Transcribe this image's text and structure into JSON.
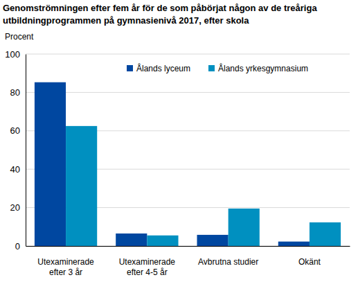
{
  "chart_data": {
    "type": "bar",
    "title": "Genomströmningen efter fem år för de som påbörjat någon av de treåriga\nutbildningprogrammen på gymnasienivå 2017, efter skola",
    "y_label": "Procent",
    "categories": [
      "Utexaminerade\nefter 3 år",
      "Utexaminerade\nefter 4-5 år",
      "Avbrutna studier",
      "Okänt"
    ],
    "series": [
      {
        "name": "Ålands lyceum",
        "color": "#0047a0",
        "values": [
          85.3,
          6.5,
          5.8,
          2.3
        ]
      },
      {
        "name": "Ålands yrkesgymnasium",
        "color": "#0090c0",
        "values": [
          62.5,
          5.5,
          19.5,
          12.3
        ]
      }
    ],
    "ylim": [
      0,
      100
    ],
    "yticks": [
      0,
      20,
      40,
      60,
      80,
      100
    ],
    "grid": true,
    "legend": "top-right"
  }
}
